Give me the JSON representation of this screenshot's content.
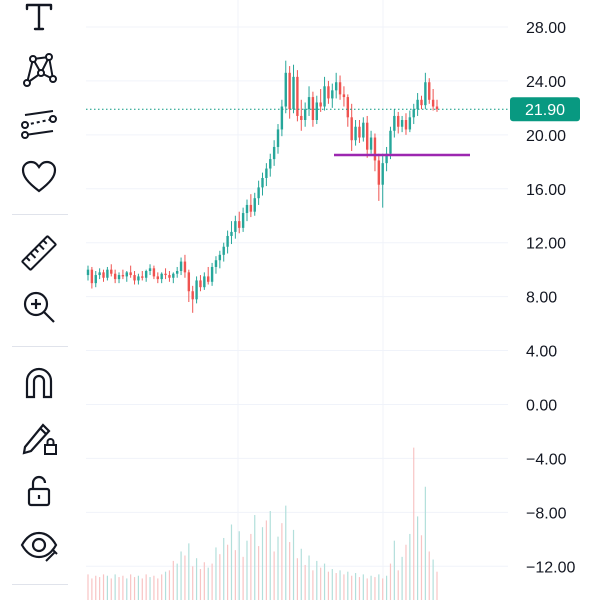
{
  "chart_data": {
    "type": "candlestick",
    "y_ticks": [
      "28.00",
      "24.00",
      "20.00",
      "16.00",
      "12.00",
      "8.00",
      "4.00",
      "0.00",
      "−4.00",
      "−8.00",
      "−12.00"
    ],
    "y_tick_values": [
      28,
      24,
      20,
      16,
      12,
      8,
      4,
      0,
      -4,
      -8,
      -12
    ],
    "ylim": [
      -14.5,
      30.0
    ],
    "grid": true,
    "last_price": 21.9,
    "last_price_label": "21.90",
    "horizontal_line": {
      "value": 18.5,
      "color": "#9c27b0"
    },
    "colors": {
      "up": "#26a69a",
      "down": "#ef5350",
      "price_tag": "#089981",
      "volume_up": "#b2dfdb",
      "volume_down": "#f8c4c4"
    },
    "candles": [
      [
        9.6,
        10.3,
        9.2,
        10.0
      ],
      [
        10.0,
        10.2,
        8.6,
        9.0
      ],
      [
        9.0,
        9.9,
        8.7,
        9.6
      ],
      [
        9.6,
        10.1,
        9.3,
        9.8
      ],
      [
        9.8,
        10.0,
        9.1,
        9.4
      ],
      [
        9.4,
        10.2,
        9.2,
        10.0
      ],
      [
        10.0,
        10.4,
        9.5,
        9.7
      ],
      [
        9.7,
        10.0,
        9.0,
        9.3
      ],
      [
        9.3,
        9.8,
        9.0,
        9.6
      ],
      [
        9.6,
        10.0,
        9.3,
        9.5
      ],
      [
        9.5,
        9.9,
        9.1,
        9.8
      ],
      [
        9.8,
        10.3,
        9.4,
        9.6
      ],
      [
        9.6,
        9.9,
        8.9,
        9.2
      ],
      [
        9.2,
        9.7,
        8.9,
        9.5
      ],
      [
        9.5,
        9.9,
        9.2,
        9.4
      ],
      [
        9.4,
        10.0,
        9.1,
        9.9
      ],
      [
        9.9,
        10.4,
        9.6,
        10.1
      ],
      [
        10.1,
        10.3,
        9.3,
        9.5
      ],
      [
        9.5,
        9.8,
        9.0,
        9.3
      ],
      [
        9.3,
        9.8,
        9.0,
        9.7
      ],
      [
        9.7,
        10.1,
        9.3,
        9.6
      ],
      [
        9.6,
        9.9,
        9.1,
        9.4
      ],
      [
        9.4,
        9.8,
        9.0,
        9.7
      ],
      [
        9.7,
        10.2,
        9.4,
        9.9
      ],
      [
        9.9,
        10.9,
        9.6,
        10.6
      ],
      [
        10.6,
        11.1,
        9.4,
        9.8
      ],
      [
        9.8,
        10.0,
        7.6,
        8.4
      ],
      [
        8.4,
        8.8,
        6.8,
        7.8
      ],
      [
        7.8,
        9.5,
        7.5,
        9.2
      ],
      [
        9.2,
        9.6,
        8.4,
        8.7
      ],
      [
        8.7,
        9.8,
        8.5,
        9.5
      ],
      [
        9.5,
        10.2,
        8.9,
        9.1
      ],
      [
        9.1,
        10.5,
        8.8,
        10.2
      ],
      [
        10.2,
        11.0,
        9.7,
        10.7
      ],
      [
        10.7,
        11.4,
        10.1,
        11.1
      ],
      [
        11.1,
        12.0,
        10.6,
        11.7
      ],
      [
        11.7,
        12.9,
        11.2,
        12.5
      ],
      [
        12.5,
        13.6,
        11.9,
        12.8
      ],
      [
        12.8,
        14.0,
        12.3,
        13.6
      ],
      [
        13.6,
        14.3,
        12.7,
        13.1
      ],
      [
        13.1,
        14.6,
        12.8,
        14.2
      ],
      [
        14.2,
        15.2,
        13.6,
        14.8
      ],
      [
        14.8,
        15.6,
        13.9,
        14.3
      ],
      [
        14.3,
        15.7,
        14.0,
        15.3
      ],
      [
        15.3,
        16.6,
        14.8,
        16.1
      ],
      [
        16.1,
        17.2,
        15.5,
        16.8
      ],
      [
        16.8,
        17.9,
        16.2,
        17.5
      ],
      [
        17.5,
        18.6,
        16.9,
        18.2
      ],
      [
        18.2,
        19.6,
        17.7,
        19.1
      ],
      [
        19.1,
        20.8,
        18.6,
        20.4
      ],
      [
        20.4,
        22.6,
        19.9,
        22.1
      ],
      [
        22.1,
        25.5,
        21.6,
        24.6
      ],
      [
        24.6,
        25.1,
        21.2,
        21.9
      ],
      [
        21.9,
        25.2,
        21.6,
        24.3
      ],
      [
        24.3,
        24.8,
        21.0,
        21.4
      ],
      [
        21.4,
        22.6,
        20.3,
        21.1
      ],
      [
        21.1,
        22.4,
        20.6,
        21.9
      ],
      [
        21.9,
        23.6,
        21.4,
        22.8
      ],
      [
        22.8,
        23.2,
        20.6,
        21.1
      ],
      [
        21.1,
        22.9,
        20.8,
        22.4
      ],
      [
        22.4,
        23.4,
        21.7,
        22.1
      ],
      [
        22.1,
        24.3,
        21.8,
        23.6
      ],
      [
        23.6,
        24.0,
        22.3,
        22.7
      ],
      [
        22.7,
        23.8,
        22.0,
        23.3
      ],
      [
        23.3,
        24.6,
        22.7,
        23.9
      ],
      [
        23.9,
        24.4,
        22.6,
        23.0
      ],
      [
        23.0,
        23.6,
        22.1,
        22.8
      ],
      [
        22.8,
        23.0,
        20.6,
        21.3
      ],
      [
        21.3,
        22.3,
        18.8,
        19.6
      ],
      [
        19.6,
        21.1,
        19.2,
        20.6
      ],
      [
        20.6,
        21.1,
        19.4,
        19.8
      ],
      [
        19.8,
        21.3,
        19.5,
        20.9
      ],
      [
        20.9,
        21.4,
        18.3,
        18.9
      ],
      [
        18.9,
        20.3,
        18.6,
        19.8
      ],
      [
        19.8,
        20.1,
        17.3,
        18.1
      ],
      [
        18.1,
        18.6,
        15.1,
        16.3
      ],
      [
        16.3,
        18.6,
        14.6,
        17.9
      ],
      [
        17.9,
        19.1,
        17.3,
        18.6
      ],
      [
        18.6,
        20.6,
        18.2,
        20.3
      ],
      [
        20.3,
        21.9,
        19.8,
        21.4
      ],
      [
        21.4,
        21.7,
        20.1,
        20.6
      ],
      [
        20.6,
        21.4,
        20.2,
        21.1
      ],
      [
        21.1,
        21.6,
        20.0,
        20.4
      ],
      [
        20.4,
        21.8,
        20.2,
        21.3
      ],
      [
        21.3,
        22.3,
        20.8,
        21.9
      ],
      [
        21.9,
        23.1,
        21.4,
        22.6
      ],
      [
        22.6,
        22.9,
        21.9,
        22.2
      ],
      [
        22.2,
        24.6,
        21.9,
        23.9
      ],
      [
        23.9,
        24.2,
        22.3,
        22.6
      ],
      [
        22.6,
        23.4,
        21.8,
        22.1
      ],
      [
        22.1,
        22.6,
        21.7,
        21.9
      ]
    ],
    "volume_ticks": [
      [
        0,
        -12.6
      ],
      [
        0,
        -12.9
      ],
      [
        0,
        -12.7
      ],
      [
        0,
        -12.8
      ],
      [
        0,
        -12.6
      ],
      [
        1,
        -12.7
      ],
      [
        0,
        -12.9
      ],
      [
        1,
        -12.6
      ],
      [
        0,
        -12.8
      ],
      [
        0,
        -12.7
      ],
      [
        1,
        -12.9
      ],
      [
        0,
        -12.6
      ],
      [
        0,
        -12.8
      ],
      [
        1,
        -12.7
      ],
      [
        0,
        -12.9
      ],
      [
        0,
        -12.6
      ],
      [
        1,
        -12.8
      ],
      [
        0,
        -12.7
      ],
      [
        0,
        -12.9
      ],
      [
        0,
        -12.6
      ],
      [
        1,
        -12.4
      ],
      [
        0,
        -12.3
      ],
      [
        0,
        -11.6
      ],
      [
        1,
        -11.8
      ],
      [
        1,
        -10.9
      ],
      [
        0,
        -11.2
      ],
      [
        1,
        -10.3
      ],
      [
        0,
        -12.0
      ],
      [
        1,
        -11.4
      ],
      [
        0,
        -12.2
      ],
      [
        0,
        -11.7
      ],
      [
        1,
        -12.1
      ],
      [
        0,
        -11.8
      ],
      [
        1,
        -10.6
      ],
      [
        0,
        -11.1
      ],
      [
        1,
        -9.9
      ],
      [
        0,
        -10.4
      ],
      [
        1,
        -8.9
      ],
      [
        0,
        -10.8
      ],
      [
        1,
        -9.4
      ],
      [
        0,
        -11.3
      ],
      [
        1,
        -10.1
      ],
      [
        0,
        -9.6
      ],
      [
        1,
        -8.2
      ],
      [
        0,
        -10.5
      ],
      [
        1,
        -9.1
      ],
      [
        0,
        -8.6
      ],
      [
        1,
        -7.9
      ],
      [
        0,
        -10.9
      ],
      [
        1,
        -9.8
      ],
      [
        0,
        -8.8
      ],
      [
        1,
        -7.5
      ],
      [
        0,
        -10.2
      ],
      [
        1,
        -9.3
      ],
      [
        0,
        -11.4
      ],
      [
        1,
        -10.7
      ],
      [
        0,
        -11.9
      ],
      [
        1,
        -11.2
      ],
      [
        0,
        -12.3
      ],
      [
        1,
        -11.6
      ],
      [
        0,
        -12.1
      ],
      [
        1,
        -11.8
      ],
      [
        0,
        -12.4
      ],
      [
        1,
        -12.2
      ],
      [
        0,
        -12.5
      ],
      [
        1,
        -12.3
      ],
      [
        0,
        -12.6
      ],
      [
        1,
        -12.4
      ],
      [
        0,
        -12.7
      ],
      [
        1,
        -12.5
      ],
      [
        0,
        -12.8
      ],
      [
        1,
        -12.6
      ],
      [
        0,
        -12.9
      ],
      [
        1,
        -12.7
      ],
      [
        0,
        -12.8
      ],
      [
        1,
        -12.6
      ],
      [
        0,
        -12.9
      ],
      [
        1,
        -12.7
      ],
      [
        0,
        -11.8
      ],
      [
        1,
        -10.1
      ],
      [
        0,
        -12.3
      ],
      [
        1,
        -11.3
      ],
      [
        0,
        -10.4
      ],
      [
        1,
        -9.6
      ],
      [
        0,
        -3.2
      ],
      [
        1,
        -8.3
      ],
      [
        0,
        -9.7
      ],
      [
        1,
        -6.1
      ],
      [
        0,
        -10.9
      ],
      [
        1,
        -11.5
      ],
      [
        0,
        -12.4
      ]
    ]
  },
  "toolbar": {
    "icons": [
      "text-tool-icon",
      "pattern-tool-icon",
      "indicator-tool-icon",
      "favorites-icon",
      "ruler-icon",
      "zoom-in-icon",
      "magnet-icon",
      "lock-drawing-icon",
      "unlock-icon",
      "eye-icon"
    ]
  }
}
